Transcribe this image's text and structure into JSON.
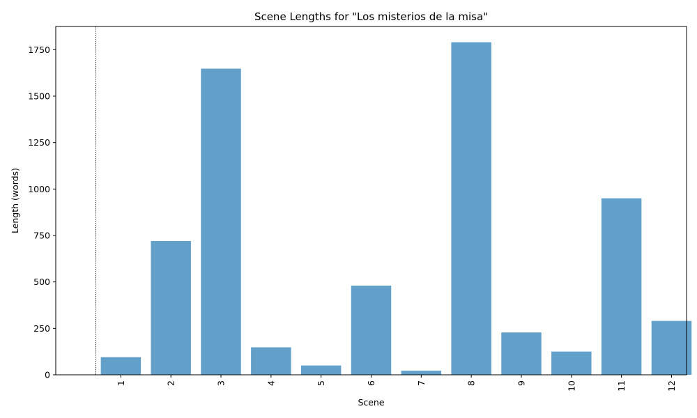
{
  "chart_data": {
    "type": "bar",
    "title": "Scene Lengths for \"Los misterios de la misa\"",
    "xlabel": "Scene",
    "ylabel": "Length (words)",
    "categories": [
      "1",
      "2",
      "3",
      "4",
      "5",
      "6",
      "7",
      "8",
      "9",
      "10",
      "11",
      "12"
    ],
    "values": [
      95,
      720,
      1648,
      148,
      50,
      480,
      22,
      1790,
      228,
      125,
      950,
      290
    ],
    "yticks": [
      "0",
      "250",
      "500",
      "750",
      "1000",
      "1250",
      "1500",
      "1750"
    ],
    "ylim": [
      0,
      1875
    ],
    "bar_color": "#62a0ca",
    "grid": false,
    "vertical_reference_line": {
      "style": "dotted",
      "color": "#000000",
      "x": 0.5
    }
  }
}
